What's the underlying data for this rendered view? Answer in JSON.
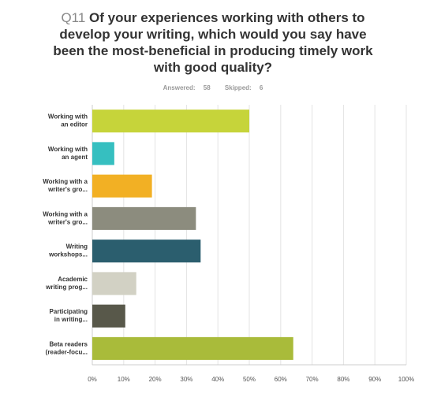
{
  "question": {
    "number": "Q11",
    "text": "Of your experiences working with others to develop your writing, which would you say have been the most-beneficial in producing timely work with good quality?",
    "answered_label": "Answered:",
    "answered_value": "58",
    "skipped_label": "Skipped:",
    "skipped_value": "6"
  },
  "chart_data": {
    "type": "bar",
    "orientation": "horizontal",
    "categories": [
      [
        "Working with",
        "an editor"
      ],
      [
        "Working with",
        "an agent"
      ],
      [
        "Working with a",
        "writer's gro..."
      ],
      [
        "Working with a",
        "writer's gro..."
      ],
      [
        "Writing",
        "workshops..."
      ],
      [
        "Academic",
        "writing prog..."
      ],
      [
        "Participating",
        "in writing..."
      ],
      [
        "Beta readers",
        "(reader-focu..."
      ]
    ],
    "values": [
      50,
      7,
      19,
      33,
      34.5,
      14,
      10.5,
      64
    ],
    "colors": [
      "#c6d43a",
      "#36bfc0",
      "#f2b024",
      "#8c8c7e",
      "#2b5e6e",
      "#d2d1c4",
      "#58584a",
      "#a9bb3a"
    ],
    "xlim": [
      0,
      100
    ],
    "ticks": [
      "0%",
      "10%",
      "20%",
      "30%",
      "40%",
      "50%",
      "60%",
      "70%",
      "80%",
      "90%",
      "100%"
    ],
    "grid": true
  }
}
